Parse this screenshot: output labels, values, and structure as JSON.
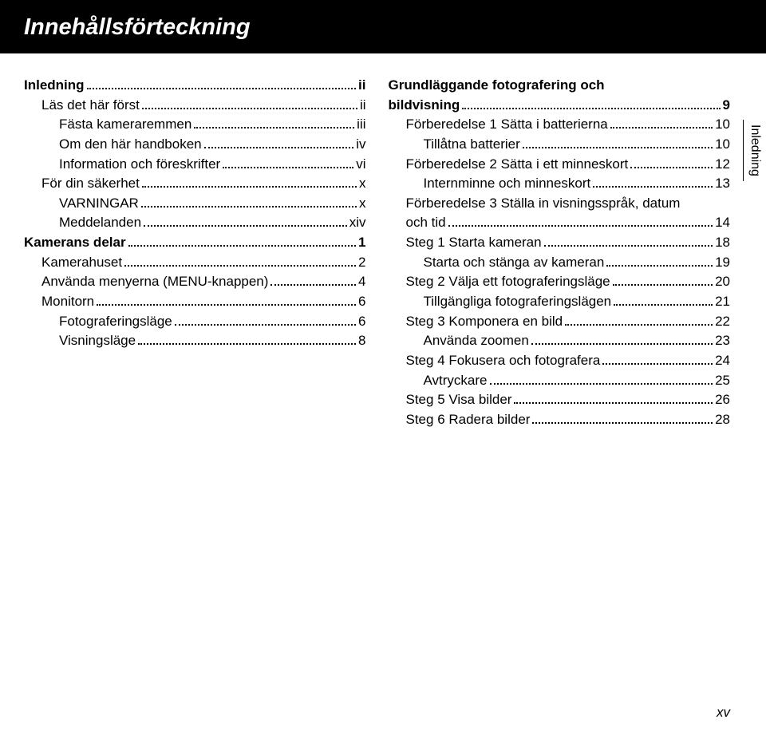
{
  "title": "Innehållsförteckning",
  "sideTab": "Inledning",
  "pageNumber": "xv",
  "leftColumn": [
    {
      "label": "Inledning",
      "page": "ii",
      "bold": true,
      "indent": 0
    },
    {
      "label": "Läs det här först",
      "page": "ii",
      "bold": false,
      "indent": 1
    },
    {
      "label": "Fästa kameraremmen",
      "page": "iii",
      "bold": false,
      "indent": 2
    },
    {
      "label": "Om den här handboken",
      "page": "iv",
      "bold": false,
      "indent": 2
    },
    {
      "label": "Information och föreskrifter",
      "page": "vi",
      "bold": false,
      "indent": 2
    },
    {
      "label": "För din säkerhet",
      "page": "x",
      "bold": false,
      "indent": 1
    },
    {
      "label": "VARNINGAR",
      "page": "x",
      "bold": false,
      "indent": 2
    },
    {
      "label": "Meddelanden",
      "page": "xiv",
      "bold": false,
      "indent": 2
    },
    {
      "label": "Kamerans delar",
      "page": "1",
      "bold": true,
      "indent": 0
    },
    {
      "label": "Kamerahuset",
      "page": "2",
      "bold": false,
      "indent": 1
    },
    {
      "label": "Använda menyerna (MENU-knappen)",
      "page": "4",
      "bold": false,
      "indent": 1
    },
    {
      "label": "Monitorn",
      "page": "6",
      "bold": false,
      "indent": 1
    },
    {
      "label": "Fotograferingsläge",
      "page": "6",
      "bold": false,
      "indent": 2
    },
    {
      "label": "Visningsläge",
      "page": "8",
      "bold": false,
      "indent": 2
    }
  ],
  "rightColumn": [
    {
      "type": "multi",
      "lines": [
        "Grundläggande fotografering och",
        "bildvisning"
      ],
      "page": "9",
      "bold": true,
      "indent": 0
    },
    {
      "label": "Förberedelse 1 Sätta i batterierna",
      "page": "10",
      "bold": false,
      "indent": 1
    },
    {
      "label": "Tillåtna batterier",
      "page": "10",
      "bold": false,
      "indent": 2
    },
    {
      "label": "Förberedelse 2 Sätta i ett minneskort",
      "page": "12",
      "bold": false,
      "indent": 1
    },
    {
      "label": "Internminne och minneskort",
      "page": "13",
      "bold": false,
      "indent": 2
    },
    {
      "type": "multi",
      "lines": [
        "Förberedelse 3 Ställa in visningsspråk, datum",
        "och tid"
      ],
      "page": "14",
      "bold": false,
      "indent": 1
    },
    {
      "label": "Steg 1 Starta kameran",
      "page": "18",
      "bold": false,
      "indent": 1
    },
    {
      "label": "Starta och stänga av kameran",
      "page": "19",
      "bold": false,
      "indent": 2
    },
    {
      "label": "Steg 2 Välja ett fotograferingsläge",
      "page": "20",
      "bold": false,
      "indent": 1
    },
    {
      "label": "Tillgängliga fotograferingslägen",
      "page": "21",
      "bold": false,
      "indent": 2
    },
    {
      "label": "Steg 3 Komponera en bild",
      "page": "22",
      "bold": false,
      "indent": 1
    },
    {
      "label": "Använda zoomen",
      "page": "23",
      "bold": false,
      "indent": 2
    },
    {
      "label": "Steg 4 Fokusera och fotografera",
      "page": "24",
      "bold": false,
      "indent": 1
    },
    {
      "label": "Avtryckare",
      "page": "25",
      "bold": false,
      "indent": 2
    },
    {
      "label": "Steg 5 Visa bilder",
      "page": "26",
      "bold": false,
      "indent": 1
    },
    {
      "label": "Steg 6 Radera bilder",
      "page": "28",
      "bold": false,
      "indent": 1
    }
  ]
}
